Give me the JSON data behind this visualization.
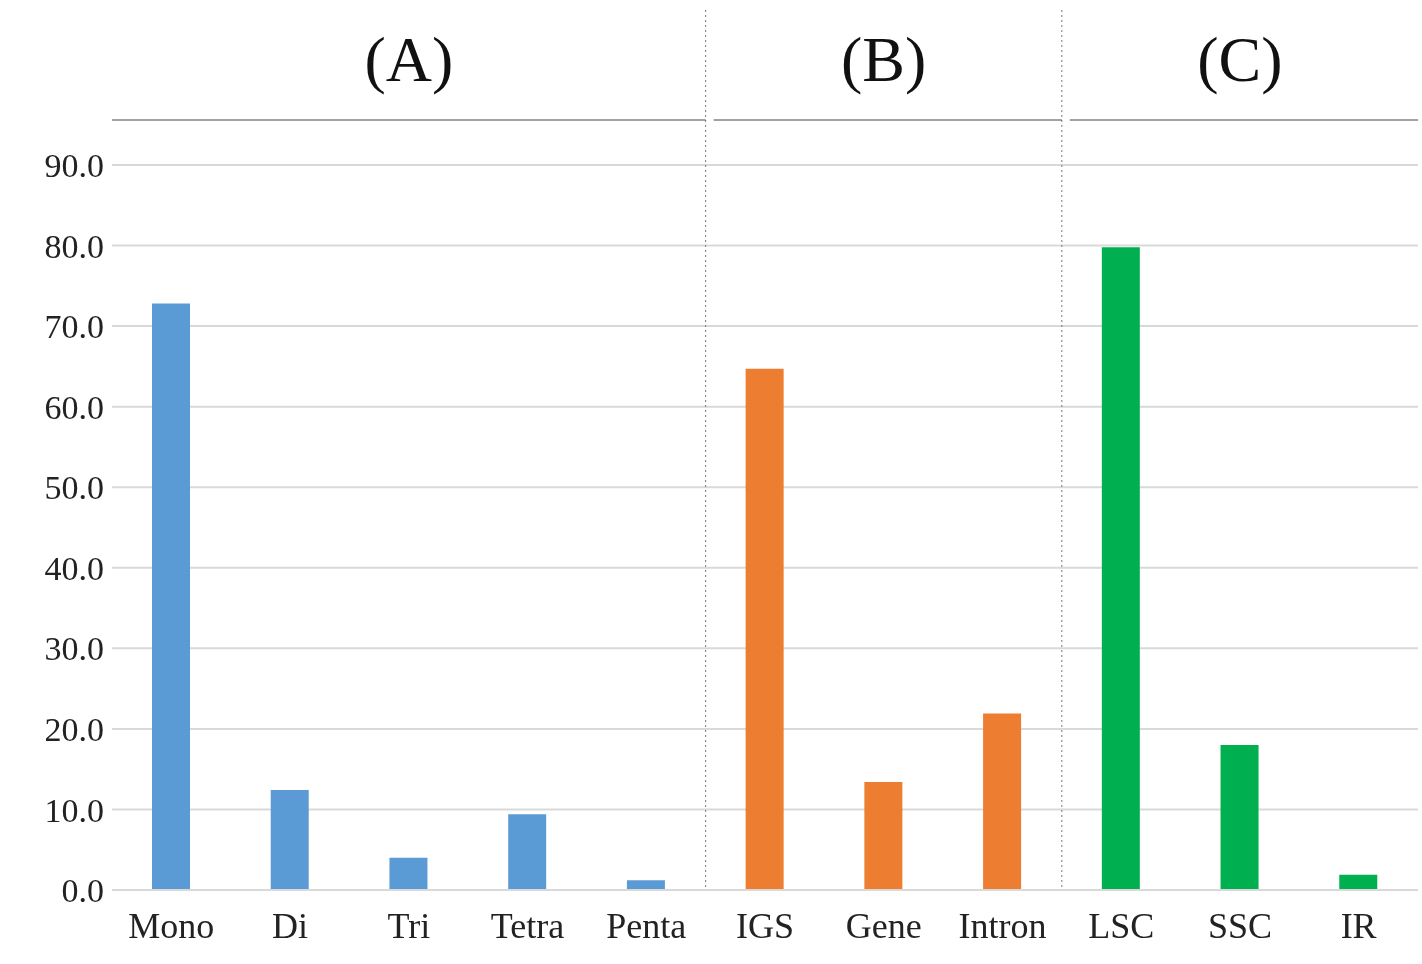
{
  "chart_data": {
    "type": "bar",
    "categories": [
      "Mono",
      "Di",
      "Tri",
      "Tetra",
      "Penta",
      "IGS",
      "Gene",
      "Intron",
      "LSC",
      "SSC",
      "IR"
    ],
    "values": [
      72.8,
      12.4,
      4.0,
      9.4,
      1.2,
      64.7,
      13.4,
      21.9,
      79.8,
      18.0,
      1.9
    ],
    "colors": [
      "#5b9bd5",
      "#5b9bd5",
      "#5b9bd5",
      "#5b9bd5",
      "#5b9bd5",
      "#ed7d31",
      "#ed7d31",
      "#ed7d31",
      "#00b050",
      "#00b050",
      "#00b050"
    ],
    "ylim": [
      0,
      90
    ],
    "yticks": [
      {
        "value": 0,
        "label": "0.0"
      },
      {
        "value": 10,
        "label": "10.0"
      },
      {
        "value": 20,
        "label": "20.0"
      },
      {
        "value": 30,
        "label": "30.0"
      },
      {
        "value": 40,
        "label": "40.0"
      },
      {
        "value": 50,
        "label": "50.0"
      },
      {
        "value": 60,
        "label": "60.0"
      },
      {
        "value": 70,
        "label": "70.0"
      },
      {
        "value": 80,
        "label": "80.0"
      },
      {
        "value": 90,
        "label": "90.0"
      }
    ],
    "grid": "y",
    "annotations": [
      "(A)",
      "(B)",
      "(C)"
    ]
  }
}
